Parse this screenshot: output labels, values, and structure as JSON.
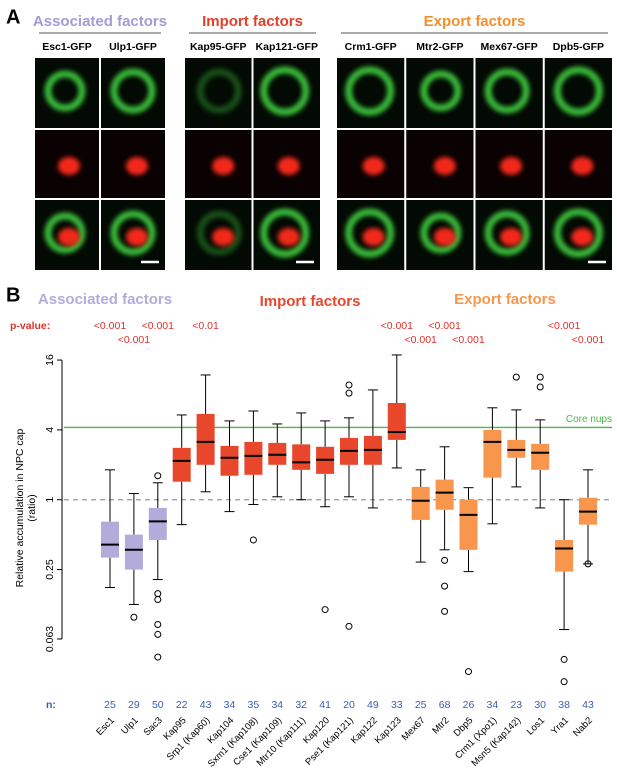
{
  "panel_a": {
    "label": "A",
    "groups": [
      {
        "title": "Associated factors",
        "color": "#a39bd4",
        "columns": [
          "Esc1-GFP",
          "Ulp1-GFP"
        ]
      },
      {
        "title": "Import factors",
        "color": "#e2402a",
        "columns": [
          "Kap95-GFP",
          "Kap121-GFP"
        ]
      },
      {
        "title": "Export factors",
        "color": "#f0902c",
        "columns": [
          "Crm1-GFP",
          "Mtr2-GFP",
          "Mex67-GFP",
          "Dpb5-GFP"
        ]
      }
    ]
  },
  "chart_data": {
    "type": "box",
    "label": "B",
    "ylabel": "Relative accumulation in NPC cap",
    "ylabel_unit": "(ratio)",
    "p_label": "p-value:",
    "n_label": "n:",
    "log_scale": true,
    "ylim": [
      0.022,
      22
    ],
    "yticks": [
      16,
      4,
      1,
      0.25,
      0.063
    ],
    "reference_lines": [
      {
        "value": 4.2,
        "label": "Core nups",
        "color": "#4cb84c"
      },
      {
        "value": 1,
        "color": "#999999",
        "dashed": true
      }
    ],
    "groups": [
      {
        "name": "Associated factors",
        "color": "#b3abda",
        "boxes": [
          {
            "category": "Esc1",
            "n": 25,
            "p_value": "<0.001",
            "low": 0.175,
            "q1": 0.317,
            "median": 0.41,
            "q3": 0.647,
            "high": 1.81,
            "outliers": []
          },
          {
            "category": "Ulp1",
            "n": 29,
            "p_value": "<0.001",
            "low": 0.125,
            "q1": 0.25,
            "median": 0.37,
            "q3": 0.5,
            "high": 1.13,
            "outliers": [
              0.097
            ]
          },
          {
            "category": "Sac3",
            "n": 50,
            "p_value": "<0.001",
            "low": 0.205,
            "q1": 0.45,
            "median": 0.65,
            "q3": 0.85,
            "high": 1.4,
            "outliers": [
              1.61,
              0.155,
              0.138,
              0.084,
              0.069,
              0.044
            ]
          }
        ]
      },
      {
        "name": "Import factors",
        "color": "#e8472c",
        "boxes": [
          {
            "category": "Kap95",
            "n": 22,
            "low": 0.61,
            "q1": 1.43,
            "median": 2.16,
            "q3": 2.8,
            "high": 5.38,
            "outliers": []
          },
          {
            "category": "Srp1 (Kap60)",
            "n": 43,
            "p_value": "<0.01",
            "low": 1.17,
            "q1": 2.0,
            "median": 3.15,
            "q3": 5.49,
            "high": 11.9,
            "outliers": []
          },
          {
            "category": "Kap104",
            "n": 34,
            "low": 0.79,
            "q1": 1.61,
            "median": 2.3,
            "q3": 2.91,
            "high": 4.78,
            "outliers": []
          },
          {
            "category": "Sxm1 (Kap108)",
            "n": 35,
            "low": 0.91,
            "q1": 1.64,
            "median": 2.39,
            "q3": 3.15,
            "high": 5.82,
            "outliers": [
              0.45
            ]
          },
          {
            "category": "Cse1 (Kap109)",
            "n": 34,
            "low": 1.06,
            "q1": 2.0,
            "median": 2.44,
            "q3": 3.09,
            "high": 4.5,
            "outliers": []
          },
          {
            "category": "Mtr10 (Kap111)",
            "n": 32,
            "low": 1.0,
            "q1": 1.81,
            "median": 2.1,
            "q3": 3.0,
            "high": 5.6,
            "outliers": []
          },
          {
            "category": "Kap120",
            "n": 41,
            "low": 0.87,
            "q1": 1.67,
            "median": 2.21,
            "q3": 2.86,
            "high": 4.78,
            "outliers": [
              0.113
            ]
          },
          {
            "category": "Pse1 (Kap121)",
            "n": 20,
            "low": 1.06,
            "q1": 2.0,
            "median": 2.64,
            "q3": 3.41,
            "high": 5.08,
            "outliers": [
              9.75,
              8.3,
              0.081
            ]
          },
          {
            "category": "Kap122",
            "n": 49,
            "low": 0.85,
            "q1": 2.0,
            "median": 2.69,
            "q3": 3.55,
            "high": 8.84,
            "outliers": []
          },
          {
            "category": "Kap123",
            "n": 33,
            "p_value": "<0.001",
            "low": 1.88,
            "q1": 3.28,
            "median": 3.84,
            "q3": 6.82,
            "high": 17.7,
            "outliers": []
          }
        ]
      },
      {
        "name": "Export factors",
        "color": "#f7964c",
        "boxes": [
          {
            "category": "Mex67",
            "n": 25,
            "p_value": "<0.001",
            "low": 0.29,
            "q1": 0.67,
            "median": 0.98,
            "q3": 1.29,
            "high": 1.81,
            "outliers": []
          },
          {
            "category": "Mtr2",
            "n": 68,
            "p_value": "<0.001",
            "low": 0.37,
            "q1": 0.82,
            "median": 1.15,
            "q3": 1.49,
            "high": 2.86,
            "outliers": [
              0.3,
              0.18,
              0.109
            ]
          },
          {
            "category": "Dbp5",
            "n": 26,
            "p_value": "<0.001",
            "low": 0.24,
            "q1": 0.37,
            "median": 0.74,
            "q3": 1.0,
            "high": 1.27,
            "outliers": [
              0.033
            ]
          },
          {
            "category": "Crm1 (Xpo1)",
            "n": 34,
            "low": 0.62,
            "q1": 1.55,
            "median": 3.15,
            "q3": 4.0,
            "high": 6.2,
            "outliers": []
          },
          {
            "category": "Msn5 (Kap142)",
            "n": 23,
            "low": 1.29,
            "q1": 2.3,
            "median": 2.69,
            "q3": 3.28,
            "high": 5.95,
            "outliers": [
              11.4
            ]
          },
          {
            "category": "Los1",
            "n": 30,
            "low": 0.85,
            "q1": 1.81,
            "median": 2.54,
            "q3": 3.03,
            "high": 4.88,
            "outliers": [
              11.4,
              9.37
            ]
          },
          {
            "category": "Yra1",
            "n": 38,
            "p_value": "<0.001",
            "low": 0.076,
            "q1": 0.24,
            "median": 0.38,
            "q3": 0.45,
            "high": 1.0,
            "outliers": [
              0.042,
              0.027
            ]
          },
          {
            "category": "Nab2",
            "n": 43,
            "p_value": "<0.001",
            "low": 0.28,
            "q1": 0.61,
            "median": 0.79,
            "q3": 1.04,
            "high": 1.81,
            "outliers": [
              0.28
            ]
          }
        ]
      }
    ]
  }
}
